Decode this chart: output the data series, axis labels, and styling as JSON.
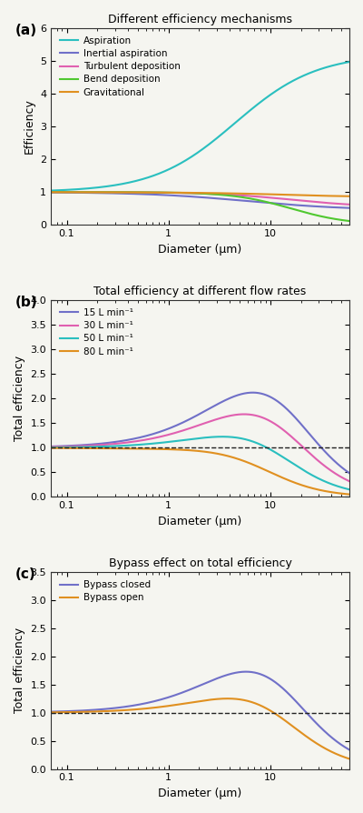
{
  "fig_width": 4.0,
  "fig_height": 8.94,
  "dpi": 100,
  "panel_a": {
    "title": "Different efficiency mechanisms",
    "xlabel": "Diameter (μm)",
    "ylabel": "Efficiency",
    "ylim": [
      0.0,
      6.0
    ],
    "xlim": [
      0.07,
      60
    ],
    "yticks": [
      0.0,
      1.0,
      2.0,
      3.0,
      4.0,
      5.0,
      6.0
    ],
    "label": "(a)",
    "lines": {
      "aspiration": {
        "color": "#2abfbf",
        "label": "Aspiration"
      },
      "inertial": {
        "color": "#7070c8",
        "label": "Inertial aspiration"
      },
      "turbulent": {
        "color": "#e060b0",
        "label": "Turbulent deposition"
      },
      "bend": {
        "color": "#50c830",
        "label": "Bend deposition"
      },
      "gravitational": {
        "color": "#e09020",
        "label": "Gravitational"
      }
    }
  },
  "panel_b": {
    "title": "Total efficiency at different flow rates",
    "xlabel": "Diameter (μm)",
    "ylabel": "Total efficiency",
    "ylim": [
      0.0,
      4.0
    ],
    "xlim": [
      0.07,
      60
    ],
    "yticks": [
      0.0,
      0.5,
      1.0,
      1.5,
      2.0,
      2.5,
      3.0,
      3.5,
      4.0
    ],
    "label": "(b)",
    "lines": {
      "flow15": {
        "color": "#7070c8",
        "label": "15 L min⁻¹"
      },
      "flow30": {
        "color": "#e060b0",
        "label": "30 L min⁻¹"
      },
      "flow50": {
        "color": "#2abfbf",
        "label": "50 L min⁻¹"
      },
      "flow80": {
        "color": "#e09020",
        "label": "80 L min⁻¹"
      }
    }
  },
  "panel_c": {
    "title": "Bypass effect on total efficiency",
    "xlabel": "Diameter (μm)",
    "ylabel": "Total efficiency",
    "ylim": [
      0.0,
      3.5
    ],
    "xlim": [
      0.07,
      60
    ],
    "yticks": [
      0.0,
      0.5,
      1.0,
      1.5,
      2.0,
      2.5,
      3.0,
      3.5
    ],
    "label": "(c)",
    "lines": {
      "closed": {
        "color": "#7070c8",
        "label": "Bypass closed"
      },
      "open": {
        "color": "#e09020",
        "label": "Bypass open"
      }
    }
  },
  "background_color": "#f5f5f0",
  "dashed_line_color": "#222222"
}
